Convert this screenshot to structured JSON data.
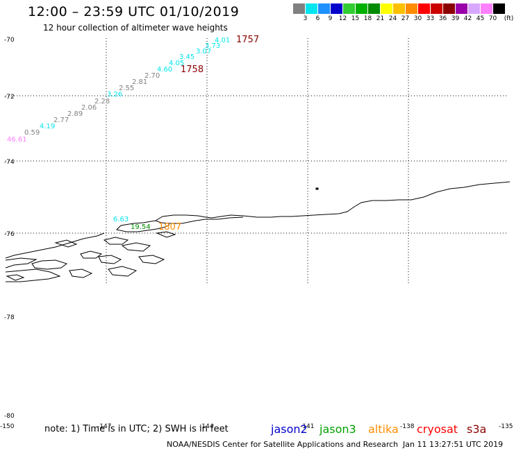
{
  "header": {
    "title": "12:00 – 23:59 UTC 01/10/2019",
    "subtitle": "12 hour collection of altimeter wave heights"
  },
  "color_scale": {
    "unit_label": "(ft)",
    "entries": [
      {
        "label": "3",
        "color": "#808080"
      },
      {
        "label": "6",
        "color": "#00e5ee"
      },
      {
        "label": "9",
        "color": "#1e90ff"
      },
      {
        "label": "12",
        "color": "#0000cd"
      },
      {
        "label": "15",
        "color": "#32cd32"
      },
      {
        "label": "18",
        "color": "#00b000"
      },
      {
        "label": "21",
        "color": "#008b00"
      },
      {
        "label": "24",
        "color": "#ffff00"
      },
      {
        "label": "27",
        "color": "#ffc000"
      },
      {
        "label": "30",
        "color": "#ff8c00"
      },
      {
        "label": "33",
        "color": "#ff0000"
      },
      {
        "label": "36",
        "color": "#cd0000"
      },
      {
        "label": "39",
        "color": "#8b0000"
      },
      {
        "label": "42",
        "color": "#9900aa"
      },
      {
        "label": "45",
        "color": "#d8a8ff"
      },
      {
        "label": "70",
        "color": "#ff80ff"
      },
      {
        "label": "",
        "color": "#000000"
      }
    ]
  },
  "map": {
    "lat_labels": [
      "-70",
      "-72",
      "-74",
      "-76",
      "-78",
      "-80"
    ],
    "lon_labels": [
      "-150",
      "-147",
      "-144",
      "-141",
      "-138",
      "-135"
    ],
    "track_labels": [
      {
        "text": "4.01",
        "color": "#00e5ee"
      },
      {
        "text": "3.73",
        "color": "#00e5ee"
      },
      {
        "text": "3.07",
        "color": "#00e5ee"
      },
      {
        "text": "3.45",
        "color": "#00e5ee"
      },
      {
        "text": "4.05",
        "color": "#00e5ee"
      },
      {
        "text": "4.60",
        "color": "#00e5ee"
      },
      {
        "text": "2.70",
        "color": "#808080"
      },
      {
        "text": "2.81",
        "color": "#808080"
      },
      {
        "text": "2.55",
        "color": "#808080"
      },
      {
        "text": "3.26",
        "color": "#00e5ee"
      },
      {
        "text": "2.28",
        "color": "#808080"
      },
      {
        "text": "2.06",
        "color": "#808080"
      },
      {
        "text": "2.89",
        "color": "#808080"
      },
      {
        "text": "2.77",
        "color": "#808080"
      },
      {
        "text": "4.19",
        "color": "#00e5ee"
      },
      {
        "text": "0.59",
        "color": "#808080"
      },
      {
        "text": "46.61",
        "color": "#ff80ff"
      },
      {
        "text": "6.63",
        "color": "#00e5ee"
      },
      {
        "text": "19.54",
        "color": "#008b00"
      }
    ],
    "time_labels": [
      {
        "text": "1757",
        "color": "#8b0000"
      },
      {
        "text": "1758",
        "color": "#8b0000"
      },
      {
        "text": "1807",
        "color": "#ff8c00"
      }
    ]
  },
  "footer": {
    "note": "note: 1) Time is in UTC; 2) SWH is in feet",
    "legend": [
      {
        "name": "jason2",
        "color": "#0000cd"
      },
      {
        "name": "jason3",
        "color": "#00a000"
      },
      {
        "name": "altika",
        "color": "#ff8c00"
      },
      {
        "name": "cryosat",
        "color": "#ff0000"
      },
      {
        "name": "s3a",
        "color": "#8b0000"
      }
    ],
    "credit": "NOAA/NESDIS Center for Satellite Applications and Research",
    "timestamp": "Jan 11 13:27:51 UTC 2019"
  }
}
